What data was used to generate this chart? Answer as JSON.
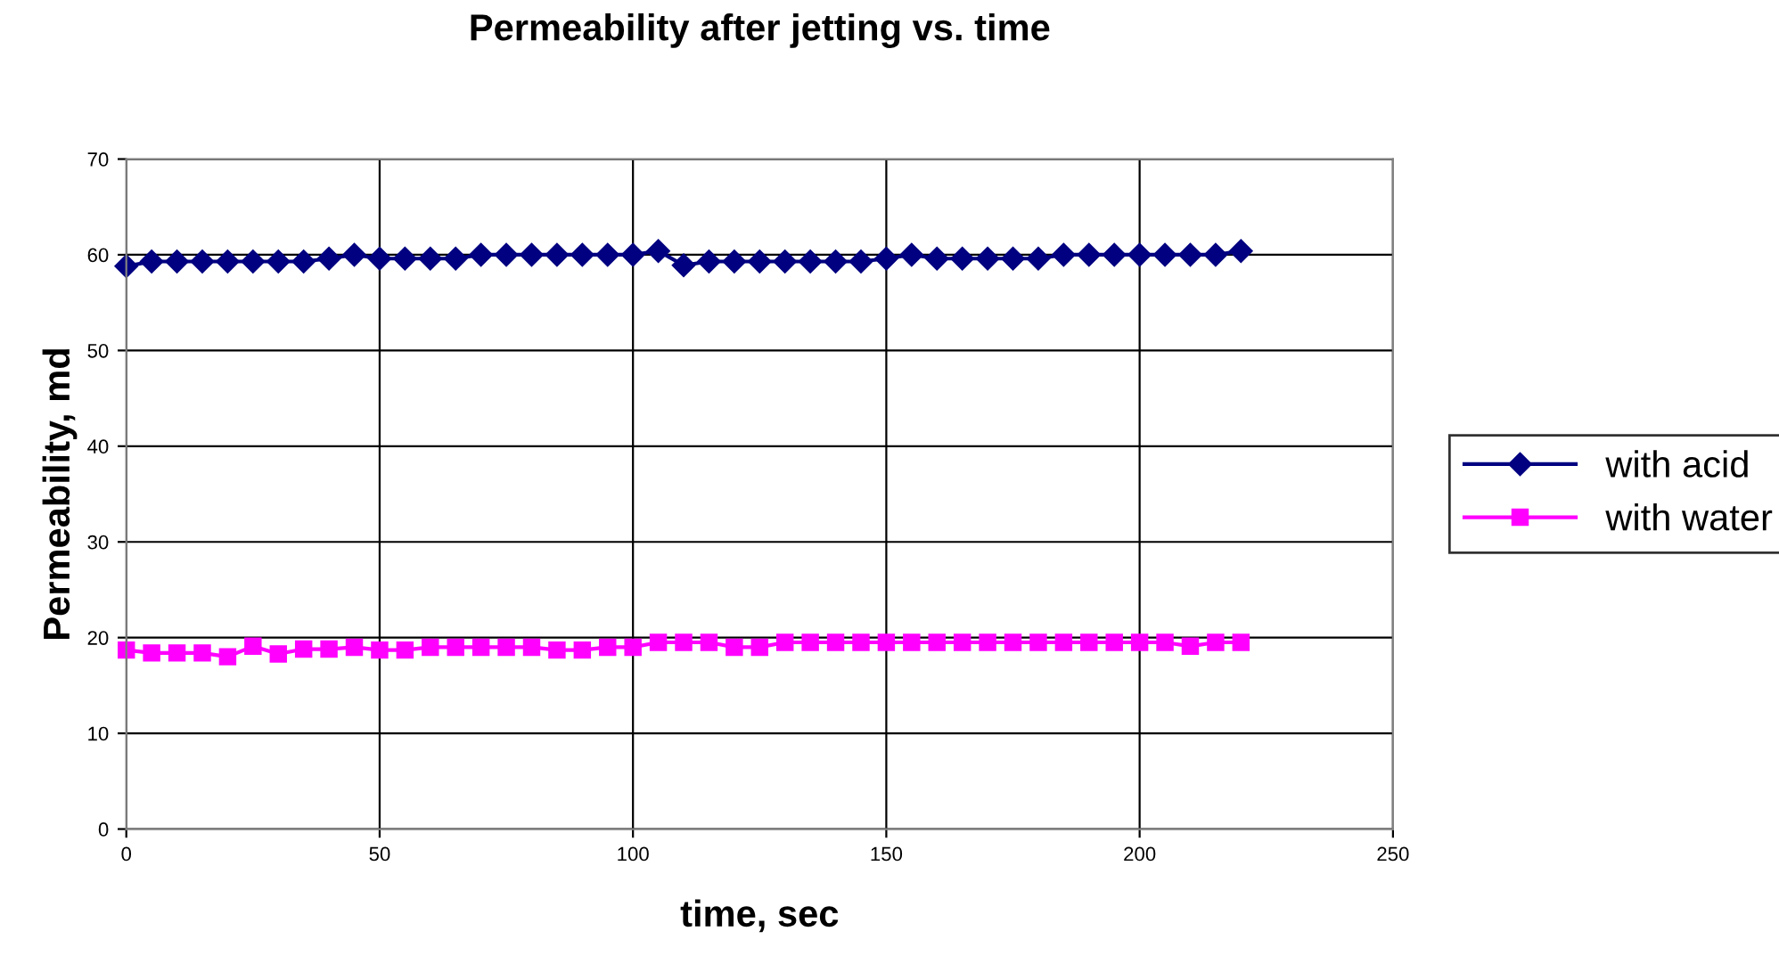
{
  "chart_data": {
    "type": "line",
    "title": "Permeability after jetting vs. time",
    "xlabel": "time, sec",
    "ylabel": "Permeability, md",
    "x": [
      0,
      5,
      10,
      15,
      20,
      25,
      30,
      35,
      40,
      45,
      50,
      55,
      60,
      65,
      70,
      75,
      80,
      85,
      90,
      95,
      100,
      105,
      110,
      115,
      120,
      125,
      130,
      135,
      140,
      145,
      150,
      155,
      160,
      165,
      170,
      175,
      180,
      185,
      190,
      195,
      200,
      205,
      210,
      215,
      220
    ],
    "series": [
      {
        "name": "with acid",
        "color": "#000080",
        "marker": "diamond",
        "values": [
          58.8,
          59.3,
          59.3,
          59.3,
          59.3,
          59.3,
          59.3,
          59.3,
          59.6,
          60,
          59.6,
          59.6,
          59.6,
          59.6,
          60,
          60,
          60,
          60,
          60,
          60,
          60,
          60.4,
          58.9,
          59.3,
          59.3,
          59.3,
          59.3,
          59.3,
          59.3,
          59.3,
          59.6,
          60,
          59.6,
          59.6,
          59.6,
          59.6,
          59.6,
          60,
          60,
          60,
          60,
          60,
          60,
          60,
          60.4
        ]
      },
      {
        "name": "with water",
        "color": "#ff00ff",
        "marker": "square",
        "values": [
          18.7,
          18.4,
          18.4,
          18.4,
          18,
          19.1,
          18.3,
          18.8,
          18.8,
          19,
          18.7,
          18.7,
          19,
          19,
          19,
          19,
          19,
          18.7,
          18.7,
          19,
          19,
          19.5,
          19.5,
          19.5,
          19,
          19,
          19.5,
          19.5,
          19.5,
          19.5,
          19.5,
          19.5,
          19.5,
          19.5,
          19.5,
          19.5,
          19.5,
          19.5,
          19.5,
          19.5,
          19.5,
          19.5,
          19.1,
          19.5,
          19.5
        ]
      }
    ],
    "xlim": [
      0,
      250
    ],
    "xticks": [
      0,
      50,
      100,
      150,
      200,
      250
    ],
    "ylim": [
      0,
      70
    ],
    "yticks": [
      0,
      10,
      20,
      30,
      40,
      50,
      60,
      70
    ],
    "grid": true,
    "legend": "right"
  }
}
